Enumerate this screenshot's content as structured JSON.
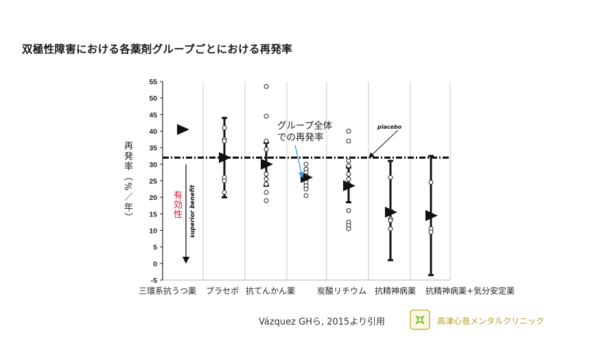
{
  "title": "双極性障害における各薬剤グループごとにおける再発率",
  "annotations": {
    "ylabel": "再発率（%／年）",
    "efficacy": "有効性",
    "superior_benefit": "superior benefit",
    "group_note_line1": "グループ全体",
    "group_note_line2": "での再発率",
    "placebo": "placebo"
  },
  "footer": {
    "citation": "Vázquez GHら, 2015より引用",
    "clinic_name": "高津心音メンタルクリニック"
  },
  "colors": {
    "title": "#1a1a1a",
    "efficacy": "#e0102a",
    "arrow_note": "#3a9ad9",
    "clinic": "#b39a2a",
    "marks": "#111111"
  },
  "chart_data": {
    "type": "scatter",
    "ylim": [
      -5,
      55
    ],
    "yticks": [
      -5,
      0,
      5,
      10,
      15,
      20,
      25,
      30,
      35,
      40,
      45,
      50,
      55
    ],
    "grid": "vertical",
    "placebo_rate": 32,
    "categories": [
      "三環系抗うつ薬",
      "プラセボ",
      "抗てんかん薬",
      "炭酸リチウム",
      "抗精神病薬",
      "抗精神病薬+気分安定薬"
    ],
    "groups": [
      {
        "category": "三環系抗うつ薬",
        "pooled": 40.5,
        "ci": null,
        "studies": [
          40.5
        ]
      },
      {
        "category": "プラセボ",
        "pooled": 32,
        "ci": [
          20,
          44
        ],
        "studies": [
          41,
          37.5,
          37,
          26,
          25,
          21.5
        ]
      },
      {
        "category": "抗てんかん薬",
        "pooled": 30,
        "ci": [
          23.5,
          36.5
        ],
        "studies": [
          53.5,
          44.5,
          37,
          34.5,
          27,
          25.5,
          24,
          21.5,
          19
        ]
      },
      {
        "category": "",
        "pooled": 26,
        "ci": null,
        "studies": [
          30,
          28.5,
          27.5,
          26.5,
          25.5,
          24.5,
          23.5,
          22.5,
          20.5
        ]
      },
      {
        "category": "炭酸リチウム",
        "pooled": 23.5,
        "ci": [
          18.5,
          29
        ],
        "studies": [
          40,
          37,
          31,
          29.5,
          27,
          25.5,
          24,
          23.5,
          16,
          12.5,
          11.5,
          10.5
        ]
      },
      {
        "category": "抗精神病薬",
        "pooled": 15.5,
        "ci": [
          1,
          31
        ],
        "studies": [
          26,
          16,
          13.5,
          13,
          10.5
        ]
      },
      {
        "category": "抗精神病薬+気分安定薬",
        "pooled": 14.5,
        "ci": [
          -3.5,
          32.5
        ],
        "studies": [
          24.5,
          10.5,
          9.5
        ]
      }
    ]
  }
}
